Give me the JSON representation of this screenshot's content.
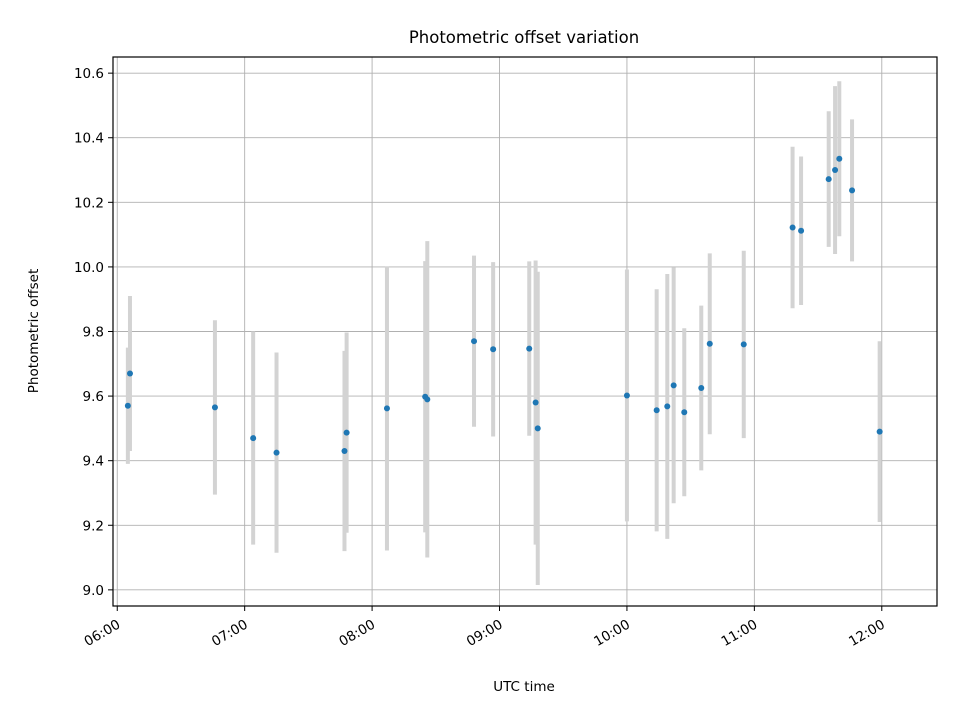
{
  "chart_data": {
    "type": "scatter",
    "title": "Photometric offset variation",
    "xlabel": "UTC time",
    "ylabel": "Photometric offset",
    "xlim": [
      "05:58",
      "12:26"
    ],
    "ylim": [
      8.95,
      10.65
    ],
    "x_ticks": [
      "06:00",
      "07:00",
      "08:00",
      "09:00",
      "10:00",
      "11:00",
      "12:00"
    ],
    "y_ticks": [
      9.0,
      9.2,
      9.4,
      9.6,
      9.8,
      10.0,
      10.2,
      10.4,
      10.6
    ],
    "y_tick_labels": [
      "9.0",
      "9.2",
      "9.4",
      "9.6",
      "9.8",
      "10.0",
      "10.2",
      "10.4",
      "10.6"
    ],
    "grid": true,
    "marker_color": "#1f77b4",
    "errorbar_color": "#d3d3d3",
    "points": [
      {
        "x": "06:05",
        "y": 9.57,
        "err": 0.18
      },
      {
        "x": "06:06",
        "y": 9.67,
        "err": 0.24
      },
      {
        "x": "06:46",
        "y": 9.565,
        "err": 0.27
      },
      {
        "x": "07:04",
        "y": 9.47,
        "err": 0.33
      },
      {
        "x": "07:15",
        "y": 9.425,
        "err": 0.31
      },
      {
        "x": "07:47",
        "y": 9.43,
        "err": 0.31
      },
      {
        "x": "07:48",
        "y": 9.487,
        "err": 0.31
      },
      {
        "x": "08:07",
        "y": 9.562,
        "err": 0.44
      },
      {
        "x": "08:25",
        "y": 9.598,
        "err": 0.42
      },
      {
        "x": "08:26",
        "y": 9.59,
        "err": 0.49
      },
      {
        "x": "08:48",
        "y": 9.77,
        "err": 0.265
      },
      {
        "x": "08:57",
        "y": 9.745,
        "err": 0.27
      },
      {
        "x": "09:14",
        "y": 9.747,
        "err": 0.27
      },
      {
        "x": "09:17",
        "y": 9.58,
        "err": 0.44
      },
      {
        "x": "09:18",
        "y": 9.5,
        "err": 0.485
      },
      {
        "x": "10:00",
        "y": 9.602,
        "err": 0.39
      },
      {
        "x": "10:14",
        "y": 9.556,
        "err": 0.375
      },
      {
        "x": "10:19",
        "y": 9.568,
        "err": 0.41
      },
      {
        "x": "10:22",
        "y": 9.633,
        "err": 0.365
      },
      {
        "x": "10:27",
        "y": 9.55,
        "err": 0.26
      },
      {
        "x": "10:35",
        "y": 9.625,
        "err": 0.255
      },
      {
        "x": "10:39",
        "y": 9.762,
        "err": 0.28
      },
      {
        "x": "10:55",
        "y": 9.76,
        "err": 0.29
      },
      {
        "x": "11:18",
        "y": 10.122,
        "err": 0.25
      },
      {
        "x": "11:22",
        "y": 10.112,
        "err": 0.23
      },
      {
        "x": "11:35",
        "y": 10.272,
        "err": 0.21
      },
      {
        "x": "11:38",
        "y": 10.3,
        "err": 0.26
      },
      {
        "x": "11:40",
        "y": 10.335,
        "err": 0.24
      },
      {
        "x": "11:46",
        "y": 10.237,
        "err": 0.22
      },
      {
        "x": "11:59",
        "y": 9.49,
        "err": 0.28
      }
    ]
  }
}
